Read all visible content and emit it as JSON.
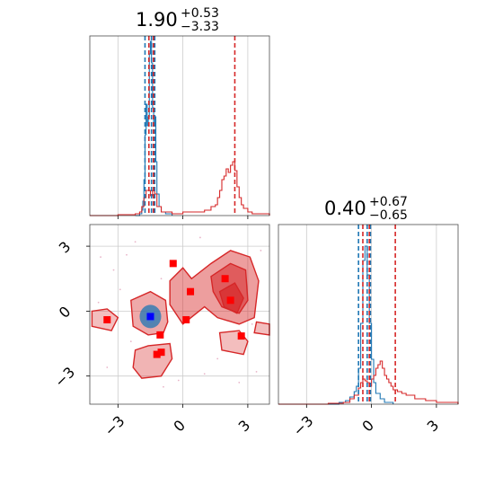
{
  "chart_data": {
    "type": "corner",
    "colors": {
      "series_a": "#1f77b4",
      "series_b": "#d62728",
      "grid": "#cccccc"
    },
    "axis_ranges": {
      "p0": [
        -4.3,
        4.0
      ],
      "p1": [
        -4.3,
        4.0
      ],
      "p0_density_y": [
        0,
        1.0
      ],
      "p1_density_y": [
        0,
        1.0
      ]
    },
    "grid": true,
    "titles": [
      {
        "param": "p0",
        "value": "1.90",
        "plus": "+0.53",
        "minus": "−3.33"
      },
      {
        "param": "p1",
        "value": "0.40",
        "plus": "+0.67",
        "minus": "−0.65"
      }
    ],
    "tick_labels": [
      "−3",
      "0",
      "3"
    ],
    "tick_values": [
      -3,
      0,
      3
    ],
    "marginals": [
      {
        "param": "p0",
        "quantile_lines": [
          {
            "series": "blue",
            "values": [
              -1.75,
              -1.45,
              -1.3
            ]
          },
          {
            "series": "red",
            "values": [
              -1.57,
              -1.36,
              2.4
            ]
          }
        ],
        "series": [
          {
            "series": "blue",
            "x": [
              -2.2,
              -2.0,
              -1.9,
              -1.85,
              -1.8,
              -1.75,
              -1.7,
              -1.65,
              -1.6,
              -1.55,
              -1.5,
              -1.45,
              -1.4,
              -1.35,
              -1.3,
              -1.25,
              -1.2,
              -1.1,
              -1.0,
              -0.8,
              -0.5
            ],
            "y": [
              0,
              0.01,
              0.03,
              0.08,
              0.2,
              0.45,
              0.62,
              0.5,
              0.55,
              0.9,
              0.97,
              0.85,
              0.6,
              0.5,
              0.55,
              0.3,
              0.12,
              0.05,
              0.02,
              0.01,
              0
            ]
          },
          {
            "series": "red",
            "x": [
              -4.3,
              -3.0,
              -2.2,
              -2.0,
              -1.9,
              -1.8,
              -1.7,
              -1.6,
              -1.5,
              -1.4,
              -1.3,
              -1.2,
              -1.0,
              -0.5,
              0.0,
              0.5,
              1.0,
              1.3,
              1.5,
              1.6,
              1.7,
              1.8,
              1.9,
              2.0,
              2.1,
              2.2,
              2.3,
              2.4,
              2.5,
              2.6,
              2.7,
              2.8,
              3.0,
              3.2,
              4.0
            ],
            "y": [
              0,
              0.005,
              0.01,
              0.02,
              0.05,
              0.1,
              0.14,
              0.14,
              0.11,
              0.14,
              0.12,
              0.05,
              0.02,
              0.01,
              0.02,
              0.02,
              0.03,
              0.05,
              0.06,
              0.1,
              0.14,
              0.2,
              0.22,
              0.26,
              0.24,
              0.28,
              0.3,
              0.25,
              0.16,
              0.1,
              0.06,
              0.04,
              0.02,
              0.01,
              0
            ]
          }
        ]
      },
      {
        "param": "p1",
        "quantile_lines": [
          {
            "series": "blue",
            "values": [
              -0.6,
              -0.2,
              -0.05
            ]
          },
          {
            "series": "red",
            "values": [
              -0.4,
              -0.1,
              1.1
            ]
          }
        ],
        "series": [
          {
            "series": "blue",
            "x": [
              -4.0,
              -1.5,
              -1.2,
              -1.0,
              -0.8,
              -0.7,
              -0.6,
              -0.5,
              -0.4,
              -0.3,
              -0.2,
              -0.1,
              0.0,
              0.1,
              0.2,
              0.4,
              0.6,
              1.0
            ],
            "y": [
              0,
              0.01,
              0.02,
              0.04,
              0.07,
              0.1,
              0.2,
              0.45,
              0.8,
              0.88,
              0.72,
              0.45,
              0.25,
              0.12,
              0.06,
              0.03,
              0.01,
              0
            ]
          },
          {
            "series": "red",
            "x": [
              -4.3,
              -2.0,
              -1.3,
              -1.0,
              -0.8,
              -0.6,
              -0.5,
              -0.4,
              -0.3,
              -0.2,
              -0.1,
              0.0,
              0.1,
              0.2,
              0.3,
              0.4,
              0.5,
              0.6,
              0.7,
              0.8,
              0.9,
              1.0,
              1.2,
              1.4,
              1.6,
              1.8,
              2.0,
              2.5,
              3.0,
              4.0
            ],
            "y": [
              0,
              0.005,
              0.01,
              0.03,
              0.05,
              0.09,
              0.12,
              0.14,
              0.13,
              0.12,
              0.1,
              0.14,
              0.16,
              0.2,
              0.22,
              0.24,
              0.2,
              0.16,
              0.14,
              0.12,
              0.1,
              0.08,
              0.07,
              0.06,
              0.05,
              0.05,
              0.03,
              0.02,
              0.01,
              0
            ]
          }
        ]
      }
    ],
    "joint": {
      "x_param": "p0",
      "y_param": "p1",
      "red_markers": [
        {
          "x": -3.5,
          "y": -0.4
        },
        {
          "x": -0.45,
          "y": 2.2
        },
        {
          "x": 0.35,
          "y": 0.9
        },
        {
          "x": 1.95,
          "y": 1.5
        },
        {
          "x": 2.2,
          "y": 0.5
        },
        {
          "x": 0.15,
          "y": -0.4
        },
        {
          "x": -1.05,
          "y": -1.1
        },
        {
          "x": -1.2,
          "y": -2.0
        },
        {
          "x": -1.0,
          "y": -1.9
        },
        {
          "x": 2.7,
          "y": -1.15
        }
      ],
      "blue_markers": [
        {
          "x": -1.5,
          "y": -0.25
        }
      ]
    }
  }
}
